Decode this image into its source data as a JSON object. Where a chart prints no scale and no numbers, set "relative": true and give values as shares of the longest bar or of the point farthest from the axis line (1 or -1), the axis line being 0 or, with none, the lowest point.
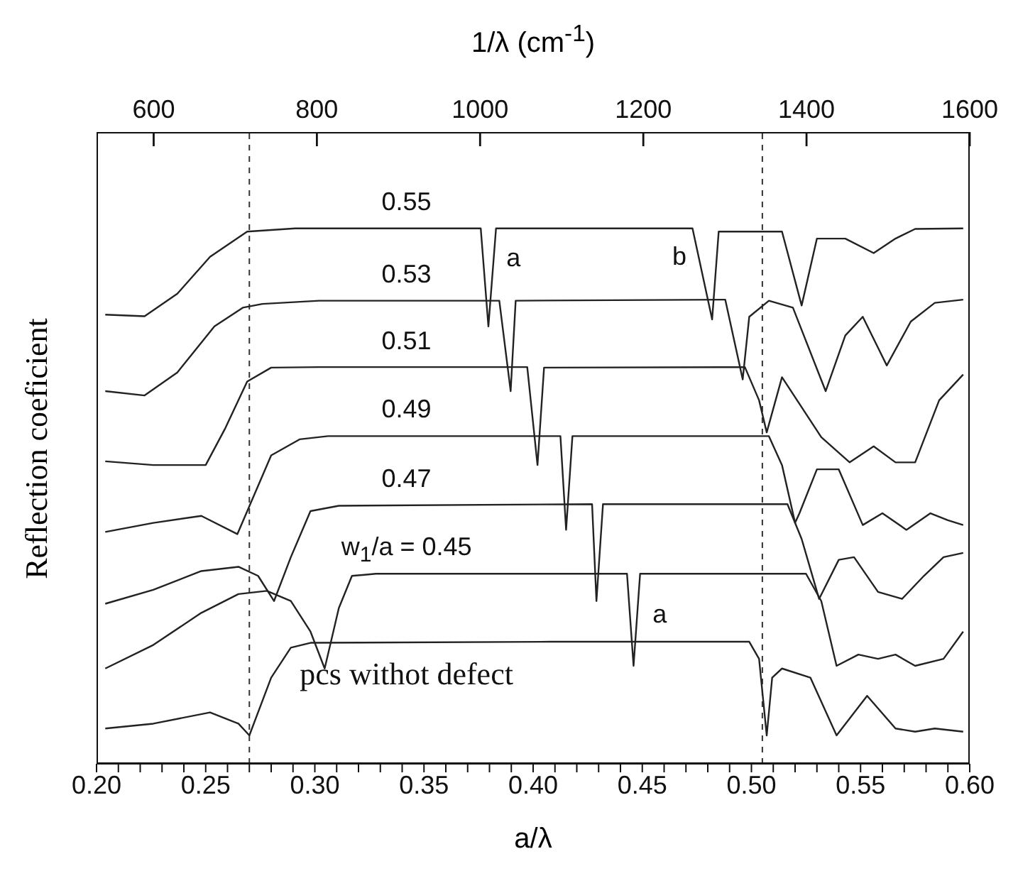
{
  "chart_data": {
    "type": "line",
    "relative": true,
    "xlabel": "a/λ",
    "x2label": "1/λ (cm$^{-1}$)",
    "ylabel": "Reflection coeficient",
    "tick_labels": "x",
    "marker": "none",
    "xlim": [
      0.2,
      0.6
    ],
    "xticks": [
      {
        "value": 0.2,
        "label": "0.20"
      },
      {
        "value": 0.21,
        "label": null
      },
      {
        "value": 0.22,
        "label": null
      },
      {
        "value": 0.23,
        "label": null
      },
      {
        "value": 0.24,
        "label": null
      },
      {
        "value": 0.25,
        "label": "0.25"
      },
      {
        "value": 0.26,
        "label": null
      },
      {
        "value": 0.27,
        "label": null
      },
      {
        "value": 0.28,
        "label": null
      },
      {
        "value": 0.29,
        "label": null
      },
      {
        "value": 0.3,
        "label": "0.30"
      },
      {
        "value": 0.31,
        "label": null
      },
      {
        "value": 0.32,
        "label": null
      },
      {
        "value": 0.33,
        "label": null
      },
      {
        "value": 0.34,
        "label": null
      },
      {
        "value": 0.35,
        "label": "0.35"
      },
      {
        "value": 0.36,
        "label": null
      },
      {
        "value": 0.37,
        "label": null
      },
      {
        "value": 0.38,
        "label": null
      },
      {
        "value": 0.39,
        "label": null
      },
      {
        "value": 0.4,
        "label": "0.40"
      },
      {
        "value": 0.41,
        "label": null
      },
      {
        "value": 0.42,
        "label": null
      },
      {
        "value": 0.43,
        "label": null
      },
      {
        "value": 0.44,
        "label": null
      },
      {
        "value": 0.45,
        "label": "0.45"
      },
      {
        "value": 0.46,
        "label": null
      },
      {
        "value": 0.47,
        "label": null
      },
      {
        "value": 0.48,
        "label": null
      },
      {
        "value": 0.49,
        "label": null
      },
      {
        "value": 0.5,
        "label": "0.50"
      },
      {
        "value": 0.51,
        "label": null
      },
      {
        "value": 0.52,
        "label": null
      },
      {
        "value": 0.53,
        "label": null
      },
      {
        "value": 0.54,
        "label": null
      },
      {
        "value": 0.55,
        "label": "0.55"
      },
      {
        "value": 0.56,
        "label": null
      },
      {
        "value": 0.57,
        "label": null
      },
      {
        "value": 0.58,
        "label": null
      },
      {
        "value": 0.59,
        "label": null
      },
      {
        "value": 0.6,
        "label": "0.60"
      }
    ],
    "x2lim": [
      530,
      1600
    ],
    "x2ticks": [
      600,
      800,
      1000,
      1200,
      1400,
      1600
    ],
    "ref_lines": [
      {
        "axis": "x",
        "value": 0.27,
        "line_style": "dashed",
        "color": "#333333"
      },
      {
        "axis": "x",
        "value": 0.505,
        "line_style": "dashed",
        "color": "#333333"
      }
    ],
    "annotations": [
      "a",
      "b",
      "a"
    ],
    "series": [
      {
        "name": "0.55",
        "color": "#222222",
        "x": [
          0.204,
          0.222,
          0.237,
          0.252,
          0.269,
          0.291,
          0.376,
          0.3795,
          0.383,
          0.473,
          0.482,
          0.485,
          0.514,
          0.523,
          0.53,
          0.543,
          0.556,
          0.566,
          0.575,
          0.597
        ],
        "values": [
          0.839,
          0.836,
          0.878,
          0.947,
          0.994,
          1.0,
          1.0,
          0.817,
          1.0,
          1.0,
          0.83,
          0.994,
          0.994,
          0.856,
          0.981,
          0.981,
          0.954,
          0.981,
          0.999,
          1.0
        ]
      },
      {
        "name": "0.53",
        "color": "#222222",
        "x": [
          0.204,
          0.222,
          0.237,
          0.254,
          0.267,
          0.276,
          0.302,
          0.3845,
          0.3897,
          0.392,
          0.488,
          0.496,
          0.499,
          0.508,
          0.519,
          0.534,
          0.543,
          0.551,
          0.562,
          0.573,
          0.584,
          0.597
        ],
        "values": [
          0.696,
          0.688,
          0.731,
          0.817,
          0.852,
          0.859,
          0.865,
          0.865,
          0.696,
          0.865,
          0.867,
          0.718,
          0.835,
          0.865,
          0.852,
          0.696,
          0.8,
          0.835,
          0.744,
          0.826,
          0.861,
          0.867
        ]
      },
      {
        "name": "0.51",
        "color": "#222222",
        "x": [
          0.204,
          0.226,
          0.25,
          0.259,
          0.269,
          0.28,
          0.302,
          0.3973,
          0.402,
          0.405,
          0.497,
          0.5035,
          0.507,
          0.514,
          0.532,
          0.545,
          0.556,
          0.566,
          0.575,
          0.586,
          0.597
        ],
        "values": [
          0.565,
          0.558,
          0.558,
          0.627,
          0.714,
          0.74,
          0.741,
          0.741,
          0.558,
          0.74,
          0.741,
          0.679,
          0.619,
          0.722,
          0.61,
          0.563,
          0.593,
          0.563,
          0.563,
          0.679,
          0.727
        ]
      },
      {
        "name": "0.49",
        "color": "#222222",
        "x": [
          0.204,
          0.226,
          0.248,
          0.2645,
          0.28,
          0.293,
          0.306,
          0.4125,
          0.4151,
          0.418,
          0.508,
          0.514,
          0.52,
          0.522,
          0.53,
          0.54,
          0.551,
          0.56,
          0.571,
          0.582,
          0.59,
          0.597
        ],
        "values": [
          0.433,
          0.45,
          0.463,
          0.429,
          0.576,
          0.606,
          0.612,
          0.612,
          0.437,
          0.612,
          0.612,
          0.558,
          0.45,
          0.468,
          0.55,
          0.55,
          0.446,
          0.468,
          0.437,
          0.468,
          0.455,
          0.446
        ]
      },
      {
        "name": "0.47",
        "color": "#222222",
        "x": [
          0.204,
          0.226,
          0.248,
          0.265,
          0.274,
          0.2813,
          0.289,
          0.298,
          0.311,
          0.427,
          0.429,
          0.432,
          0.5165,
          0.523,
          0.531,
          0.54,
          0.547,
          0.558,
          0.569,
          0.579,
          0.588,
          0.597
        ],
        "values": [
          0.299,
          0.325,
          0.36,
          0.368,
          0.351,
          0.304,
          0.386,
          0.472,
          0.482,
          0.485,
          0.304,
          0.485,
          0.485,
          0.42,
          0.308,
          0.381,
          0.386,
          0.321,
          0.308,
          0.351,
          0.386,
          0.394
        ]
      },
      {
        "name": "w$_{1}$/a = 0.45",
        "color": "#222222",
        "x": [
          0.204,
          0.226,
          0.248,
          0.265,
          0.278,
          0.289,
          0.298,
          0.3045,
          0.311,
          0.317,
          0.328,
          0.443,
          0.446,
          0.449,
          0.525,
          0.532,
          0.539,
          0.549,
          0.558,
          0.566,
          0.575,
          0.588,
          0.597
        ],
        "values": [
          0.178,
          0.222,
          0.282,
          0.317,
          0.323,
          0.304,
          0.247,
          0.178,
          0.291,
          0.351,
          0.355,
          0.355,
          0.183,
          0.355,
          0.355,
          0.304,
          0.183,
          0.204,
          0.196,
          0.204,
          0.183,
          0.196,
          0.247
        ]
      },
      {
        "name": "pcs withot defect",
        "color": "#222222",
        "x": [
          0.204,
          0.226,
          0.252,
          0.265,
          0.27,
          0.28,
          0.289,
          0.298,
          0.408,
          0.499,
          0.5035,
          0.507,
          0.5095,
          0.514,
          0.527,
          0.539,
          0.553,
          0.566,
          0.575,
          0.584,
          0.597
        ],
        "values": [
          0.066,
          0.075,
          0.096,
          0.075,
          0.053,
          0.161,
          0.217,
          0.226,
          0.228,
          0.228,
          0.196,
          0.053,
          0.161,
          0.178,
          0.161,
          0.053,
          0.127,
          0.066,
          0.06,
          0.066,
          0.06
        ]
      }
    ]
  }
}
